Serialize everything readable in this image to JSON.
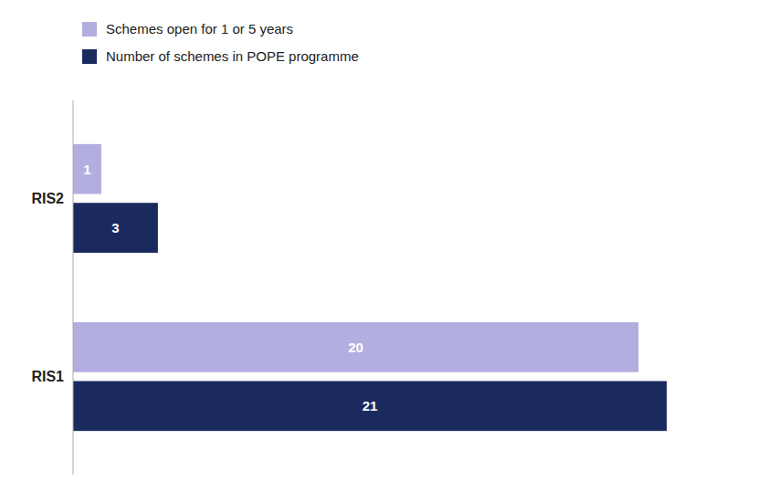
{
  "chart_data": {
    "type": "bar",
    "orientation": "horizontal",
    "categories": [
      "RIS1",
      "RIS2"
    ],
    "series": [
      {
        "name": "Schemes open for 1 or 5 years",
        "color": "#b3aee0",
        "values": [
          20,
          1
        ]
      },
      {
        "name": "Number of schemes in POPE programme",
        "color": "#1b2a5e",
        "values": [
          21,
          3
        ]
      }
    ],
    "xlim": [
      0,
      24
    ],
    "tick_labels": "y",
    "data_labels": true,
    "grid": false,
    "legend": "top"
  }
}
